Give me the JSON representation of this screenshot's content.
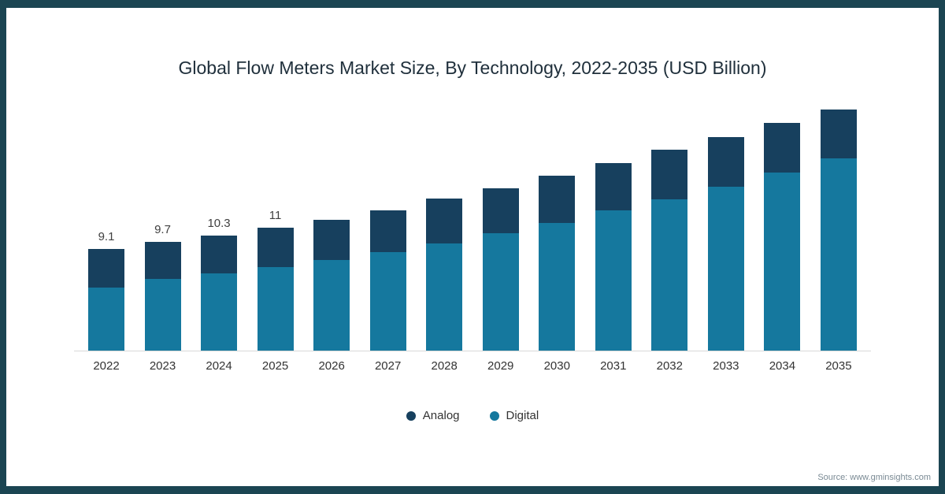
{
  "title": "Global Flow Meters Market Size, By Technology, 2022-2035 (USD Billion)",
  "source_note": "Source: www.gminsights.com",
  "colors": {
    "analog": "#17405e",
    "digital": "#15789e",
    "frame": "#1b4552",
    "axis_line": "#d8d8d8",
    "title_text": "#20303c",
    "label_text": "#404040"
  },
  "legend": [
    {
      "label": "Analog",
      "color": "#17405e"
    },
    {
      "label": "Digital",
      "color": "#15789e"
    }
  ],
  "chart_data": {
    "type": "stacked-bar",
    "title": "Global Flow Meters Market Size, By Technology, 2022-2035 (USD Billion)",
    "unit": "USD Billion",
    "categories": [
      "2022",
      "2023",
      "2024",
      "2025",
      "2026",
      "2027",
      "2028",
      "2029",
      "2030",
      "2031",
      "2032",
      "2033",
      "2034",
      "2035"
    ],
    "series": [
      {
        "name": "Analog",
        "color": "#17405e",
        "values": [
          3.4,
          3.3,
          3.4,
          3.5,
          3.6,
          3.7,
          4.0,
          4.0,
          4.2,
          4.2,
          4.4,
          4.4,
          4.4,
          4.4
        ]
      },
      {
        "name": "Digital",
        "color": "#15789e",
        "values": [
          5.7,
          6.4,
          6.9,
          7.5,
          8.1,
          8.8,
          9.6,
          10.5,
          11.4,
          12.5,
          13.5,
          14.6,
          15.9,
          17.1
        ]
      }
    ],
    "stack_order_bottom_to_top": [
      "Digital",
      "Analog"
    ],
    "totals": [
      9.1,
      9.7,
      10.3,
      11,
      11.7,
      12.5,
      13.6,
      14.5,
      15.6,
      16.7,
      17.9,
      19,
      20.3,
      21.5
    ],
    "bar_labels": [
      "9.1",
      "9.7",
      "10.3",
      "11",
      "",
      "",
      "",
      "",
      "",
      "",
      "",
      "",
      "",
      ""
    ],
    "ylim": [
      0,
      23
    ],
    "gridlines": false,
    "legend_position": "bottom"
  }
}
